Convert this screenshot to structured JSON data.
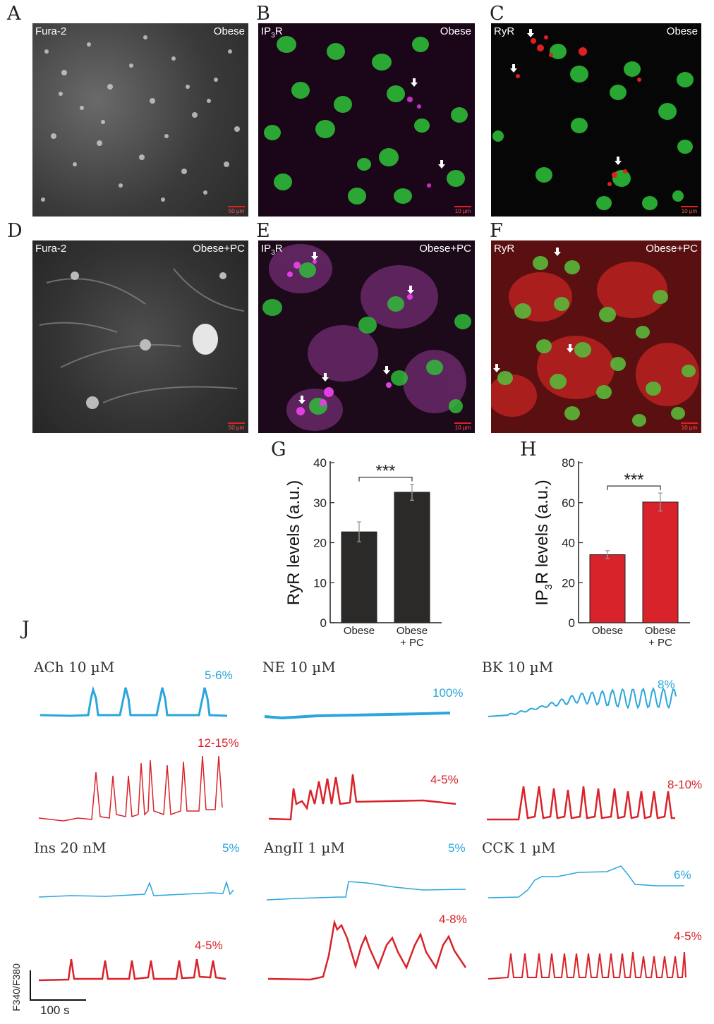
{
  "panels": {
    "A": {
      "letter": "A",
      "stain": "Fura-2",
      "group": "Obese",
      "scale": "50 µm"
    },
    "B": {
      "letter": "B",
      "stain_main": "IP",
      "stain_sub": "3",
      "stain_tail": "R",
      "group": "Obese",
      "scale": "10 µm"
    },
    "C": {
      "letter": "C",
      "stain": "RyR",
      "group": "Obese",
      "scale": "10 µm"
    },
    "D": {
      "letter": "D",
      "stain": "Fura-2",
      "group": "Obese+PC",
      "scale": "50 µm"
    },
    "E": {
      "letter": "E",
      "stain_main": "IP",
      "stain_sub": "3",
      "stain_tail": "R",
      "group": "Obese+PC",
      "scale": "10 µm"
    },
    "F": {
      "letter": "F",
      "stain": "RyR",
      "group": "Obese+PC",
      "scale": "10 µm"
    },
    "J": {
      "letter": "J"
    }
  },
  "colors": {
    "blue": "#2aa6dc",
    "red": "#d9232a",
    "dark_bar": "#2b2a29",
    "red_bar": "#d9232a",
    "magenta": "#c62fc6",
    "green": "#2fc43a"
  },
  "chart_data": [
    {
      "panel": "G",
      "type": "bar",
      "categories": [
        "Obese",
        "Obese\n+ PC"
      ],
      "values": [
        22.7,
        32.6
      ],
      "errors": [
        2.5,
        2.0
      ],
      "ylabel": "RyR levels (a.u.)",
      "ylim": [
        0,
        40
      ],
      "yticks": [
        "0",
        "10",
        "20",
        "30",
        "40"
      ],
      "significance": "***",
      "bar_color": "#2b2a29"
    },
    {
      "panel": "H",
      "type": "bar",
      "categories": [
        "Obese",
        "Obese\n+ PC"
      ],
      "values": [
        34.0,
        60.3
      ],
      "errors": [
        2.0,
        4.5
      ],
      "ylabel_main": "IP",
      "ylabel_sub": "3",
      "ylabel_tail": "R levels (a.u.)",
      "ylim": [
        0,
        80
      ],
      "yticks": [
        "0",
        "20",
        "40",
        "60",
        "80"
      ],
      "significance": "***",
      "bar_color": "#d9232a"
    }
  ],
  "traces": [
    {
      "title": "ACh 10 µM",
      "blue_pct": "5-6%",
      "red_pct": "12-15%"
    },
    {
      "title": "NE 10 µM",
      "blue_pct": "100%",
      "red_pct": "4-5%"
    },
    {
      "title": "BK 10 µM",
      "blue_pct": "8%",
      "red_pct": "8-10%"
    },
    {
      "title": "Ins 20 nM",
      "blue_pct": "5%",
      "red_pct": "4-5%"
    },
    {
      "title": "AngII 1 µM",
      "blue_pct": "5%",
      "red_pct": "4-8%"
    },
    {
      "title": "CCK 1 µM",
      "blue_pct": "6%",
      "red_pct": "4-5%"
    }
  ],
  "scale_bar": {
    "y_label": "F340/F380",
    "x_label": "100 s"
  }
}
